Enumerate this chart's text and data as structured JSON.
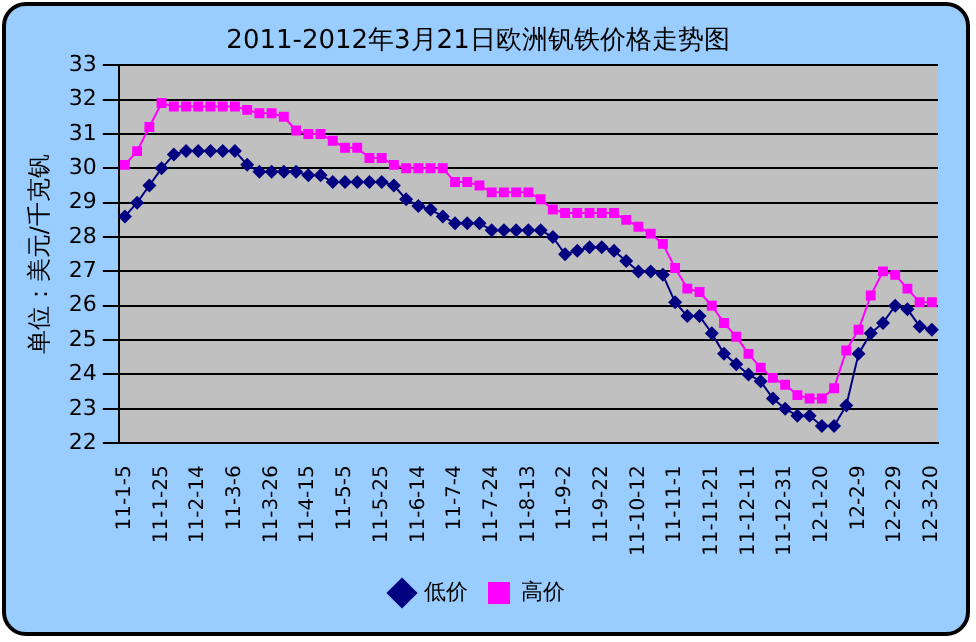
{
  "chart_data": {
    "type": "line",
    "title": "2011-2012年3月21日欧洲钒铁价格走势图",
    "ylabel": "单位：美元/千克钒",
    "categories": [
      "11-1-5",
      null,
      null,
      "11-1-25",
      null,
      null,
      "11-2-14",
      null,
      null,
      "11-3-6",
      null,
      null,
      "11-3-26",
      null,
      null,
      "11-4-15",
      null,
      null,
      "11-5-5",
      null,
      null,
      "11-5-25",
      null,
      null,
      "11-6-14",
      null,
      null,
      "11-7-4",
      null,
      null,
      "11-7-24",
      null,
      null,
      "11-8-13",
      null,
      null,
      "11-9-2",
      null,
      null,
      "11-9-22",
      null,
      null,
      "11-10-12",
      null,
      null,
      "11-11-1",
      null,
      null,
      "11-11-21",
      null,
      null,
      "11-12-11",
      null,
      null,
      "11-12-31",
      null,
      null,
      "12-1-20",
      null,
      null,
      "12-2-9",
      null,
      null,
      "12-2-29",
      null,
      null,
      "12-3-20"
    ],
    "series": [
      {
        "name": "低价",
        "color": "#000080",
        "marker": "diamond",
        "values": [
          28.6,
          29.0,
          29.5,
          30.0,
          30.4,
          30.5,
          30.5,
          30.5,
          30.5,
          30.5,
          30.1,
          29.9,
          29.9,
          29.9,
          29.9,
          29.8,
          29.8,
          29.6,
          29.6,
          29.6,
          29.6,
          29.6,
          29.5,
          29.1,
          28.9,
          28.8,
          28.6,
          28.4,
          28.4,
          28.4,
          28.2,
          28.2,
          28.2,
          28.2,
          28.2,
          28.0,
          27.5,
          27.6,
          27.7,
          27.7,
          27.6,
          27.3,
          27.0,
          27.0,
          26.9,
          26.1,
          25.7,
          25.7,
          25.2,
          24.6,
          24.3,
          24.0,
          23.8,
          23.3,
          23.0,
          22.8,
          22.8,
          22.5,
          22.5,
          23.1,
          24.6,
          25.2,
          25.5,
          26.0,
          25.9,
          25.4,
          25.3
        ]
      },
      {
        "name": "高价",
        "color": "#ff00ff",
        "marker": "square",
        "values": [
          30.1,
          30.5,
          31.2,
          31.9,
          31.8,
          31.8,
          31.8,
          31.8,
          31.8,
          31.8,
          31.7,
          31.6,
          31.6,
          31.5,
          31.1,
          31.0,
          31.0,
          30.8,
          30.6,
          30.6,
          30.3,
          30.3,
          30.1,
          30.0,
          30.0,
          30.0,
          30.0,
          29.6,
          29.6,
          29.5,
          29.3,
          29.3,
          29.3,
          29.3,
          29.1,
          28.8,
          28.7,
          28.7,
          28.7,
          28.7,
          28.7,
          28.5,
          28.3,
          28.1,
          27.8,
          27.1,
          26.5,
          26.4,
          26.0,
          25.5,
          25.1,
          24.6,
          24.2,
          23.9,
          23.7,
          23.4,
          23.3,
          23.3,
          23.6,
          24.7,
          25.3,
          26.3,
          27.0,
          26.9,
          26.5,
          26.1,
          26.1
        ]
      }
    ],
    "ylim": [
      22,
      33
    ],
    "yticks": [
      22,
      23,
      24,
      25,
      26,
      27,
      28,
      29,
      30,
      31,
      32,
      33
    ],
    "grid": "y",
    "legend": "bottom",
    "line_style": "solid"
  }
}
